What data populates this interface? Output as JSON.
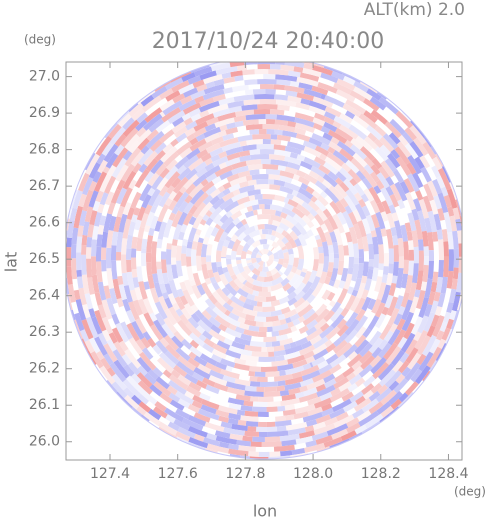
{
  "chart_data": {
    "type": "radar-ppi",
    "title": "2017/10/24 20:40:00",
    "subtitle": "ALT(km) 2.0",
    "x_label": "lon",
    "y_label": "lat",
    "x_unit": "(deg)",
    "y_unit": "(deg)",
    "xlim": [
      127.27,
      128.44
    ],
    "ylim": [
      25.95,
      27.04
    ],
    "xticks": [
      127.4,
      127.6,
      127.8,
      {
        "value": 128,
        "label": "128.0"
      },
      128.2,
      128.4
    ],
    "yticks": [
      {
        "value": 26,
        "label": "26.0"
      },
      26.1,
      26.2,
      26.3,
      26.4,
      26.5,
      26.6,
      26.7,
      26.8,
      26.9,
      {
        "value": 27,
        "label": "27.0"
      }
    ],
    "colors": {
      "positive": "#f08c8c",
      "negative": "#8c8cf0"
    }
  }
}
